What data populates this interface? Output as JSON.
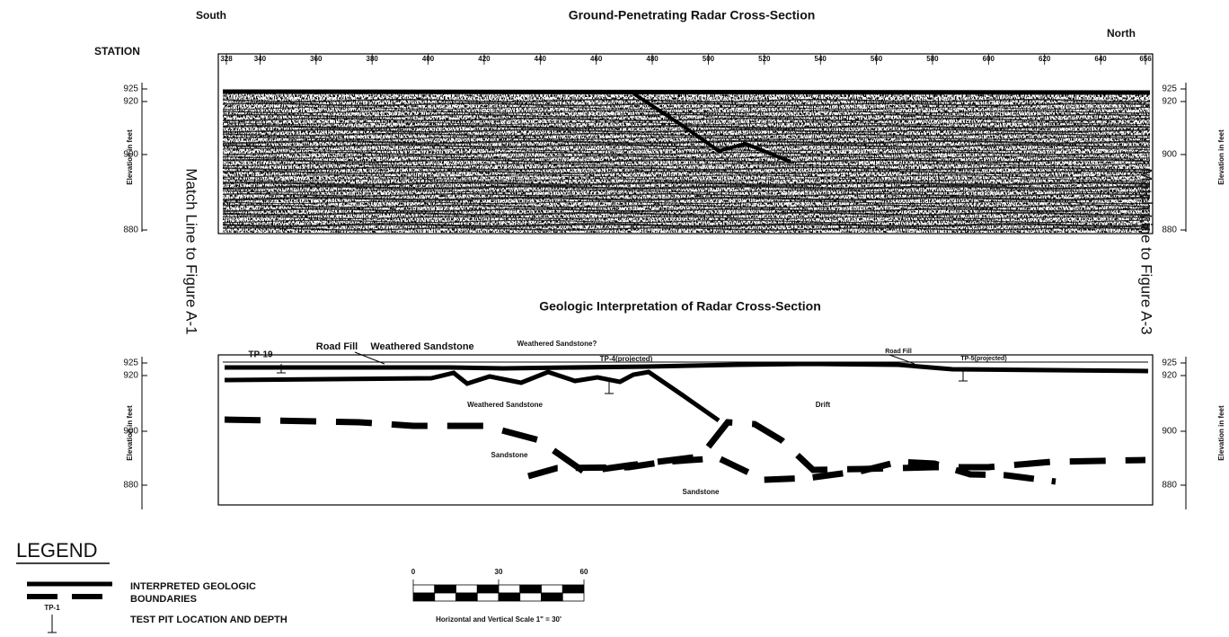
{
  "header": {
    "title": "Ground-Penetrating Radar Cross-Section",
    "south": "South",
    "north": "North",
    "station_label": "STATION"
  },
  "stations": [
    328,
    340,
    360,
    380,
    400,
    420,
    440,
    460,
    480,
    500,
    520,
    540,
    560,
    580,
    600,
    620,
    640,
    656
  ],
  "radar_section": {
    "left_axis": {
      "label": "Elevation in feet",
      "ticks": [
        925,
        920,
        900,
        880
      ]
    },
    "right_axis": {
      "label": "Elevation in feet",
      "ticks": [
        925,
        920,
        900,
        880
      ]
    }
  },
  "match_lines": [
    "Match Line to Figure A-1",
    "Match Line to Figure A-3"
  ],
  "interpretation": {
    "title": "Geologic Interpretation of Radar Cross-Section",
    "left_axis": {
      "label": "Elevation in feet",
      "ticks": [
        925,
        920,
        900,
        880
      ]
    },
    "right_axis": {
      "label": "Elevation in feet",
      "ticks": [
        925,
        920,
        900,
        880
      ]
    },
    "labels": [
      "TP-19",
      "Road Fill",
      "Weathered Sandstone",
      "Weathered Sandstone?",
      "TP-4(projected)",
      "Road Fill",
      "TP-5(projected)",
      "Weathered Sandstone",
      "Drift",
      "Sandstone",
      "Sandstone"
    ]
  },
  "legend": {
    "title": "LEGEND",
    "boundaries": [
      "INTERPRETED GEOLOGIC",
      "BOUNDARIES"
    ],
    "test_pit_symbol": "TP-1",
    "test_pit": "TEST PIT LOCATION AND DEPTH",
    "scale": {
      "ticks": [
        0,
        30,
        60
      ],
      "caption": "Horizontal and Vertical Scale 1\" = 30'"
    }
  }
}
